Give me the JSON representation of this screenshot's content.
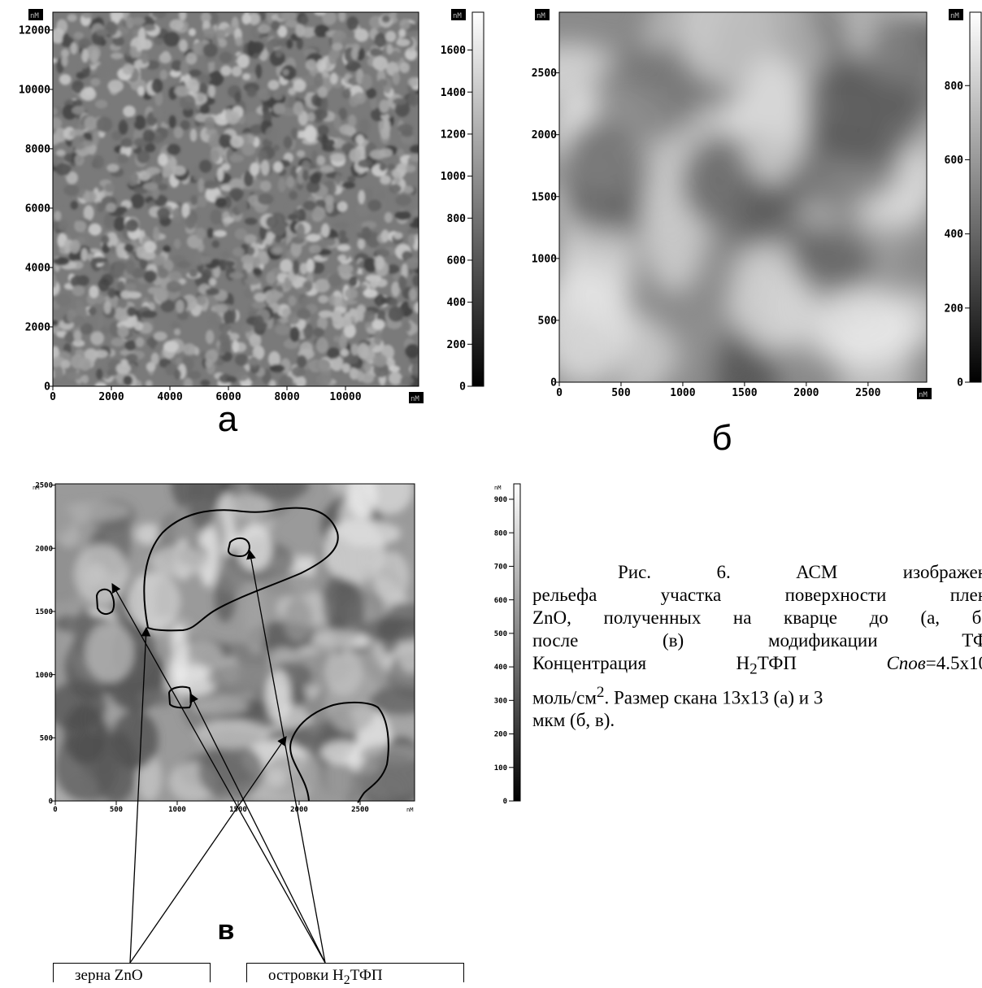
{
  "panels": [
    {
      "label": "а",
      "unit": "nM",
      "xlim": [
        0,
        12500
      ],
      "ylim": [
        0,
        12600
      ],
      "xticks": [
        0,
        2000,
        4000,
        6000,
        8000,
        10000
      ],
      "yticks": [
        0,
        2000,
        4000,
        6000,
        8000,
        10000,
        12000
      ],
      "colorbar_lim": [
        0,
        1780
      ],
      "colorbar_ticks": [
        0,
        200,
        400,
        600,
        800,
        1000,
        1200,
        1400,
        1600
      ]
    },
    {
      "label": "б",
      "unit": "nM",
      "xlim": [
        0,
        2975
      ],
      "ylim": [
        0,
        2990
      ],
      "xticks": [
        0,
        500,
        1000,
        1500,
        2000,
        2500
      ],
      "yticks": [
        0,
        500,
        1000,
        1500,
        2000,
        2500
      ],
      "colorbar_lim": [
        0,
        998
      ],
      "colorbar_ticks": [
        0,
        200,
        400,
        600,
        800
      ]
    },
    {
      "label": "в",
      "unit": "nM",
      "xlim": [
        0,
        2947
      ],
      "ylim": [
        0,
        2510
      ],
      "xticks": [
        0,
        500,
        1000,
        1500,
        2000,
        2500
      ],
      "yticks": [
        0,
        500,
        1000,
        1500,
        2000,
        2500
      ],
      "colorbar_lim": [
        0,
        946
      ],
      "colorbar_ticks": [
        0,
        100,
        200,
        300,
        400,
        500,
        600,
        700,
        800,
        900
      ]
    }
  ],
  "boxes": {
    "grains": "зерна ZnO",
    "islands": [
      "островки H",
      "2",
      "ТФП"
    ]
  },
  "caption": {
    "line1": "Рис. 6. АСМ изображен",
    "line2": "рельефа участка поверхности плен",
    "line3": "ZnO, полученных на кварце до (а, б)",
    "line4": "после (в) модификации ТФ",
    "line5": [
      "Концентрация H",
      "2",
      "ТФП",
      "Спов",
      "=4.5x10"
    ],
    "line6": [
      "моль/см",
      "2",
      ". Размер скана 13x13 (а) и 3"
    ],
    "line7": "мкм (б, в)."
  }
}
